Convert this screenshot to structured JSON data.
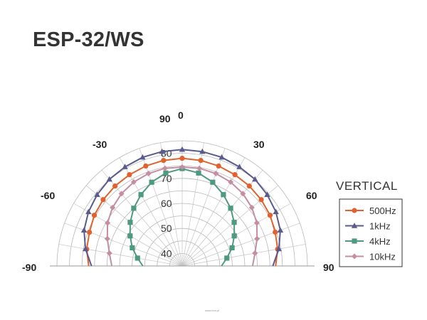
{
  "title": "ESP-32/WS",
  "view_label": "VERTICAL",
  "watermark": "www.tcm.pl",
  "chart_data": {
    "type": "polar",
    "title": "ESP-32/WS",
    "angle_range": [
      -90,
      90
    ],
    "angle_labels": [
      "90",
      "0",
      "-30",
      "30",
      "-60",
      "60",
      "-90",
      "90"
    ],
    "radial_axis": {
      "range": [
        35,
        85
      ],
      "tick_labels": [
        "40",
        "50",
        "60",
        "70",
        "80"
      ]
    },
    "legend_position": "right",
    "angles": [
      -90,
      -80,
      -70,
      -60,
      -50,
      -40,
      -30,
      -20,
      -10,
      0,
      10,
      20,
      30,
      40,
      50,
      60,
      70,
      80,
      90
    ],
    "series": [
      {
        "name": "500Hz",
        "color": "#e0622e",
        "marker": "circle",
        "values": [
          72.3,
          73.7,
          74.4,
          75.5,
          76.2,
          76.7,
          77.1,
          77.5,
          77.8,
          78.0,
          77.8,
          77.5,
          77.1,
          76.7,
          76.2,
          75.5,
          74.5,
          73.7,
          72.3
        ]
      },
      {
        "name": "1kHz",
        "color": "#5a5a8c",
        "marker": "triangle",
        "values": [
          71.2,
          74.2,
          76.7,
          78.2,
          79.3,
          80.2,
          80.7,
          81.2,
          81.4,
          81.5,
          81.4,
          81.2,
          80.7,
          80.2,
          79.3,
          78.2,
          76.7,
          74.2,
          71.2
        ]
      },
      {
        "name": "4kHz",
        "color": "#4e9a80",
        "marker": "square",
        "values": [
          50.7,
          53.1,
          56.2,
          59.0,
          62.1,
          65.1,
          67.9,
          70.6,
          72.7,
          73.9,
          72.7,
          70.6,
          67.9,
          65.1,
          62.1,
          59.0,
          56.2,
          53.1,
          50.7
        ]
      },
      {
        "name": "10kHz",
        "color": "#c48ea2",
        "marker": "diamond",
        "values": [
          63.1,
          64.5,
          66.8,
          69.4,
          71.3,
          72.7,
          73.7,
          74.3,
          74.6,
          74.5,
          74.6,
          74.3,
          73.7,
          72.7,
          71.3,
          69.4,
          66.8,
          64.5,
          63.1
        ]
      }
    ]
  }
}
